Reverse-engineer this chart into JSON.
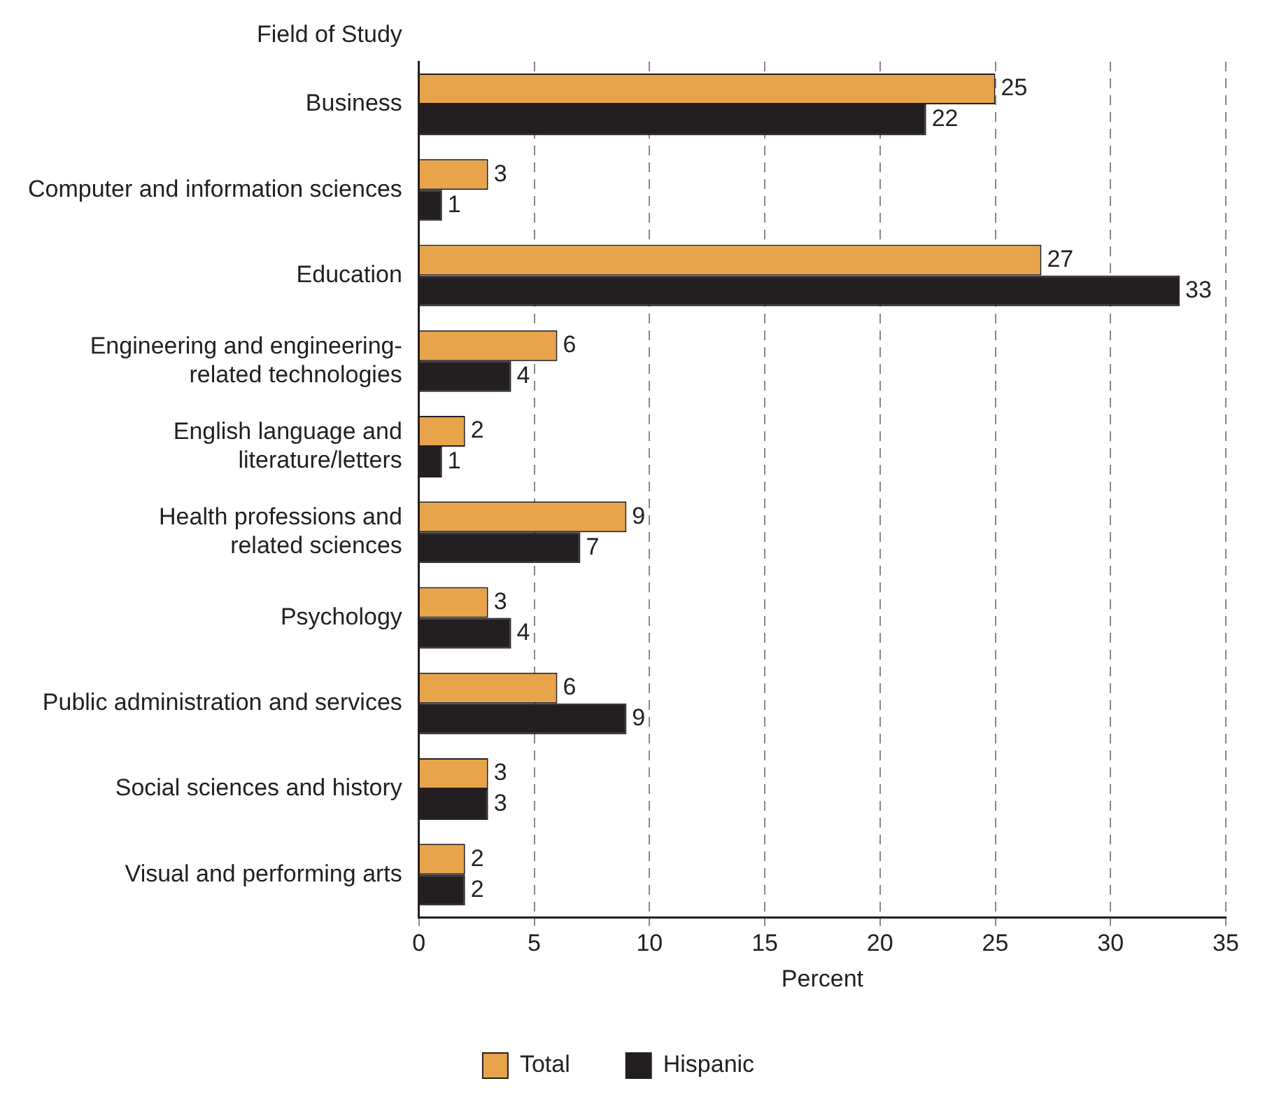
{
  "chart_data": {
    "type": "bar",
    "orientation": "horizontal",
    "ylabel": "Field of Study",
    "xlabel": "Percent",
    "categories": [
      "Business",
      "Computer and information sciences",
      "Education",
      "Engineering and engineering-\nrelated technologies",
      "English language and\nliterature/letters",
      "Health professions and\nrelated sciences",
      "Psychology",
      "Public administration and services",
      "Social sciences and history",
      "Visual and performing arts"
    ],
    "series": [
      {
        "name": "Total",
        "color": "#e8a44a",
        "values": [
          25,
          3,
          27,
          6,
          2,
          9,
          3,
          6,
          3,
          2
        ]
      },
      {
        "name": "Hispanic",
        "color": "#231f20",
        "values": [
          22,
          1,
          33,
          4,
          1,
          7,
          4,
          9,
          3,
          2
        ]
      }
    ],
    "xlim": [
      0,
      35
    ],
    "xticks": [
      0,
      5,
      10,
      15,
      20,
      25,
      30,
      35
    ],
    "grid": "x",
    "legend": "bottom",
    "data_labels": true
  }
}
